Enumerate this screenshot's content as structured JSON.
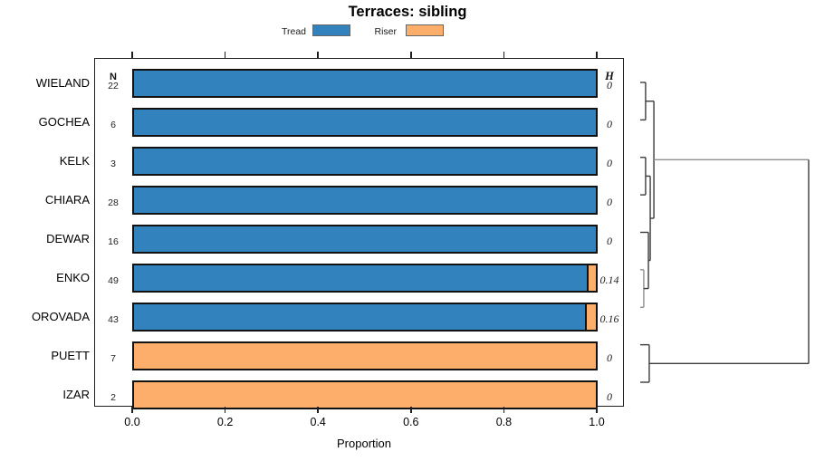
{
  "title": "Terraces: sibling",
  "legend": {
    "items": [
      {
        "label": "Tread",
        "color": "#3182BD"
      },
      {
        "label": "Riser",
        "color": "#FDAE6B"
      }
    ]
  },
  "columns": {
    "n_header": "N",
    "h_header": "H"
  },
  "x_axis": {
    "label": "Proportion",
    "ticks": [
      "0.0",
      "0.2",
      "0.4",
      "0.6",
      "0.8",
      "1.0"
    ],
    "tick_values": [
      0,
      0.2,
      0.4,
      0.6,
      0.8,
      1.0
    ]
  },
  "rows": [
    {
      "label": "WIELAND",
      "n": "22",
      "h": "0",
      "tread": 1.0,
      "riser": 0.0
    },
    {
      "label": "GOCHEA",
      "n": "6",
      "h": "0",
      "tread": 1.0,
      "riser": 0.0
    },
    {
      "label": "KELK",
      "n": "3",
      "h": "0",
      "tread": 1.0,
      "riser": 0.0
    },
    {
      "label": "CHIARA",
      "n": "28",
      "h": "0",
      "tread": 1.0,
      "riser": 0.0
    },
    {
      "label": "DEWAR",
      "n": "16",
      "h": "0",
      "tread": 1.0,
      "riser": 0.0
    },
    {
      "label": "ENKO",
      "n": "49",
      "h": "0.14",
      "tread": 0.98,
      "riser": 0.02
    },
    {
      "label": "OROVADA",
      "n": "43",
      "h": "0.16",
      "tread": 0.977,
      "riser": 0.023
    },
    {
      "label": "PUETT",
      "n": "7",
      "h": "0",
      "tread": 0.0,
      "riser": 1.0
    },
    {
      "label": "IZAR",
      "n": "2",
      "h": "0",
      "tread": 0.0,
      "riser": 1.0
    }
  ],
  "dendrogram": {
    "default_color": "#3b3b3b",
    "gray_color": "#8f8f8f",
    "merges": [
      {
        "a": "L0",
        "b": "L1",
        "h": 0.016
      },
      {
        "a": "L2",
        "b": "L3",
        "h": 0.016
      },
      {
        "a": "L5",
        "b": "L6",
        "h": 0.005,
        "color": "#8f8f8f"
      },
      {
        "a": "L4",
        "b": "M2",
        "h": 0.033
      },
      {
        "a": "M1",
        "b": "M3",
        "h": 0.044
      },
      {
        "a": "M0",
        "b": "M4",
        "h": 0.066
      },
      {
        "a": "L7",
        "b": "L8",
        "h": 0.038
      },
      {
        "a": "M5",
        "b": "M6",
        "h": 1.0,
        "color_a": "#8f8f8f"
      }
    ]
  },
  "chart_data": {
    "type": "bar",
    "orientation": "horizontal",
    "stacked": true,
    "title": "Terraces: sibling",
    "xlabel": "Proportion",
    "xlim": [
      0.0,
      1.0
    ],
    "x_ticks": [
      0.0,
      0.2,
      0.4,
      0.6,
      0.8,
      1.0
    ],
    "legend_position": "top",
    "categories": [
      "WIELAND",
      "GOCHEA",
      "KELK",
      "CHIARA",
      "DEWAR",
      "ENKO",
      "OROVADA",
      "PUETT",
      "IZAR"
    ],
    "series": [
      {
        "name": "Tread",
        "color": "#3182BD",
        "values": [
          1.0,
          1.0,
          1.0,
          1.0,
          1.0,
          0.98,
          0.977,
          0.0,
          0.0
        ]
      },
      {
        "name": "Riser",
        "color": "#FDAE6B",
        "values": [
          0.0,
          0.0,
          0.0,
          0.0,
          0.0,
          0.02,
          0.023,
          1.0,
          1.0
        ]
      }
    ],
    "N_column": [
      22,
      6,
      3,
      28,
      16,
      49,
      43,
      7,
      2
    ],
    "H_column": [
      0,
      0,
      0,
      0,
      0,
      0.14,
      0.16,
      0,
      0
    ],
    "right_panel": "cluster-dendrogram",
    "dendrogram_topology": "((WIELAND,GOCHEA),((KELK,CHIARA),(DEWAR,(ENKO,OROVADA)))) joined with (PUETT,IZAR) at root"
  }
}
